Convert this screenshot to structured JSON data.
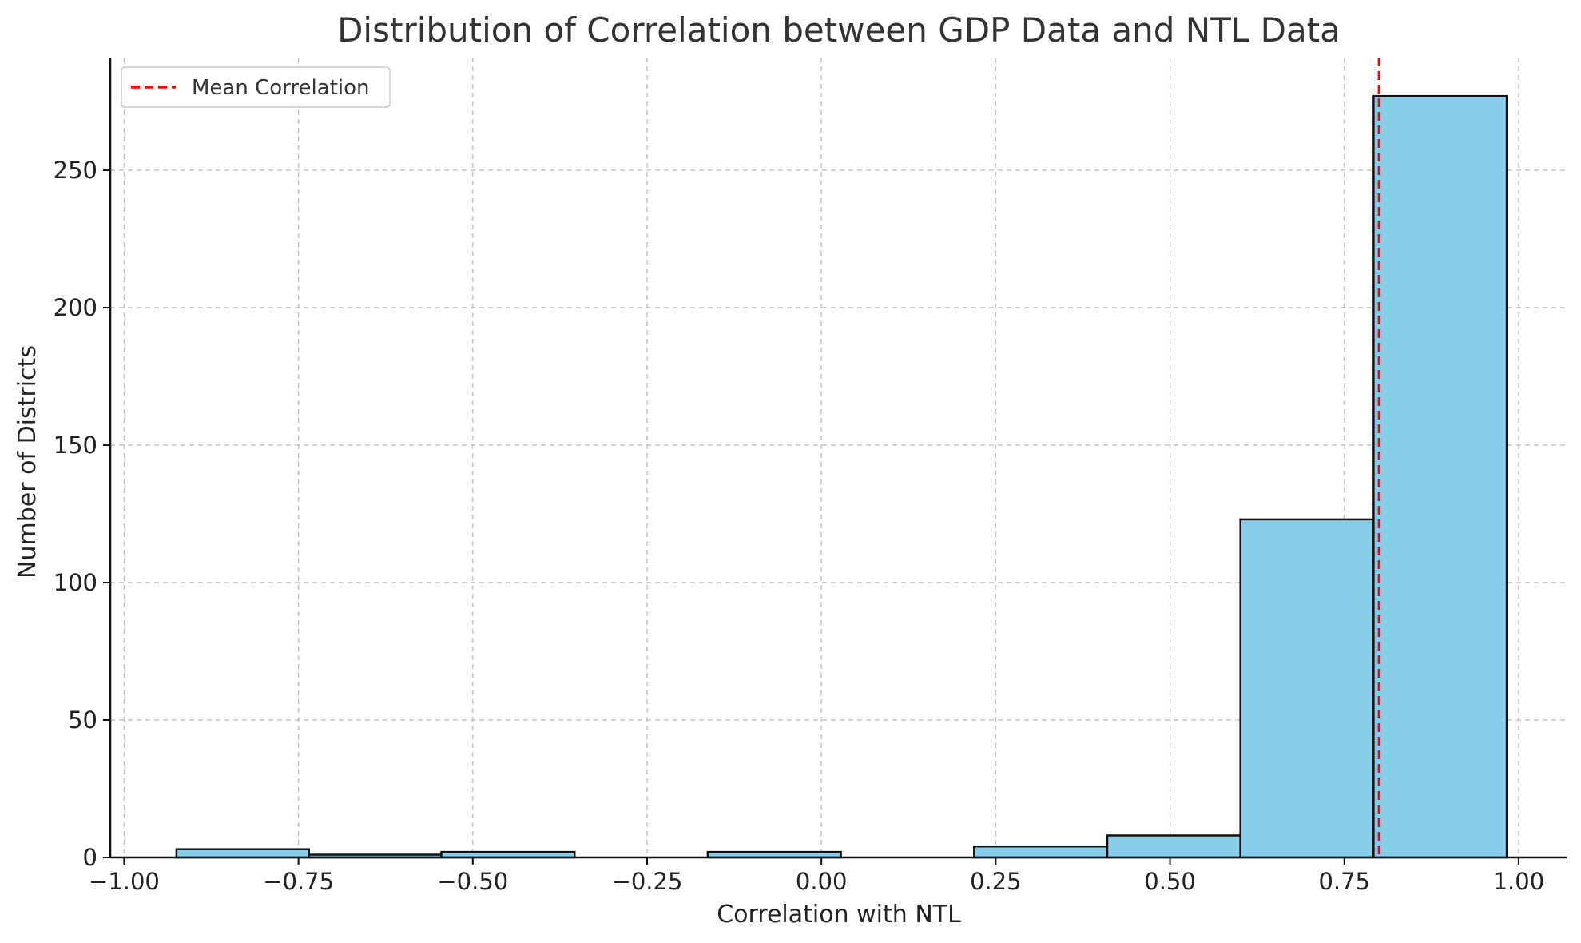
{
  "chart_data": {
    "type": "bar",
    "title": "Distribution of Correlation between GDP Data and NTL Data",
    "xlabel": "Correlation with NTL",
    "ylabel": "Number of Districts",
    "xlim": [
      -1.02,
      1.07
    ],
    "ylim": [
      0,
      291
    ],
    "x_ticks": [
      -1.0,
      -0.75,
      -0.5,
      -0.25,
      0.0,
      0.25,
      0.5,
      0.75,
      1.0
    ],
    "x_tick_labels": [
      "−1.00",
      "−0.75",
      "−0.50",
      "−0.25",
      "0.00",
      "0.25",
      "0.50",
      "0.75",
      "1.00"
    ],
    "y_ticks": [
      0,
      50,
      100,
      150,
      200,
      250
    ],
    "y_tick_labels": [
      "0",
      "50",
      "100",
      "150",
      "200",
      "250"
    ],
    "bins": [
      {
        "start": -0.925,
        "end": -0.735,
        "count": 3
      },
      {
        "start": -0.735,
        "end": -0.545,
        "count": 1
      },
      {
        "start": -0.545,
        "end": -0.354,
        "count": 2
      },
      {
        "start": -0.354,
        "end": -0.163,
        "count": 0
      },
      {
        "start": -0.163,
        "end": 0.028,
        "count": 2
      },
      {
        "start": 0.028,
        "end": 0.219,
        "count": 0
      },
      {
        "start": 0.219,
        "end": 0.41,
        "count": 4
      },
      {
        "start": 0.41,
        "end": 0.601,
        "count": 8
      },
      {
        "start": 0.601,
        "end": 0.792,
        "count": 123
      },
      {
        "start": 0.792,
        "end": 0.983,
        "count": 277
      }
    ],
    "mean_line": {
      "x": 0.8,
      "label": "Mean Correlation",
      "color": "#ff0000"
    },
    "bar_color": "#87ceeb",
    "edge_color": "#111111",
    "grid": true,
    "legend": {
      "position": "top-left"
    }
  }
}
